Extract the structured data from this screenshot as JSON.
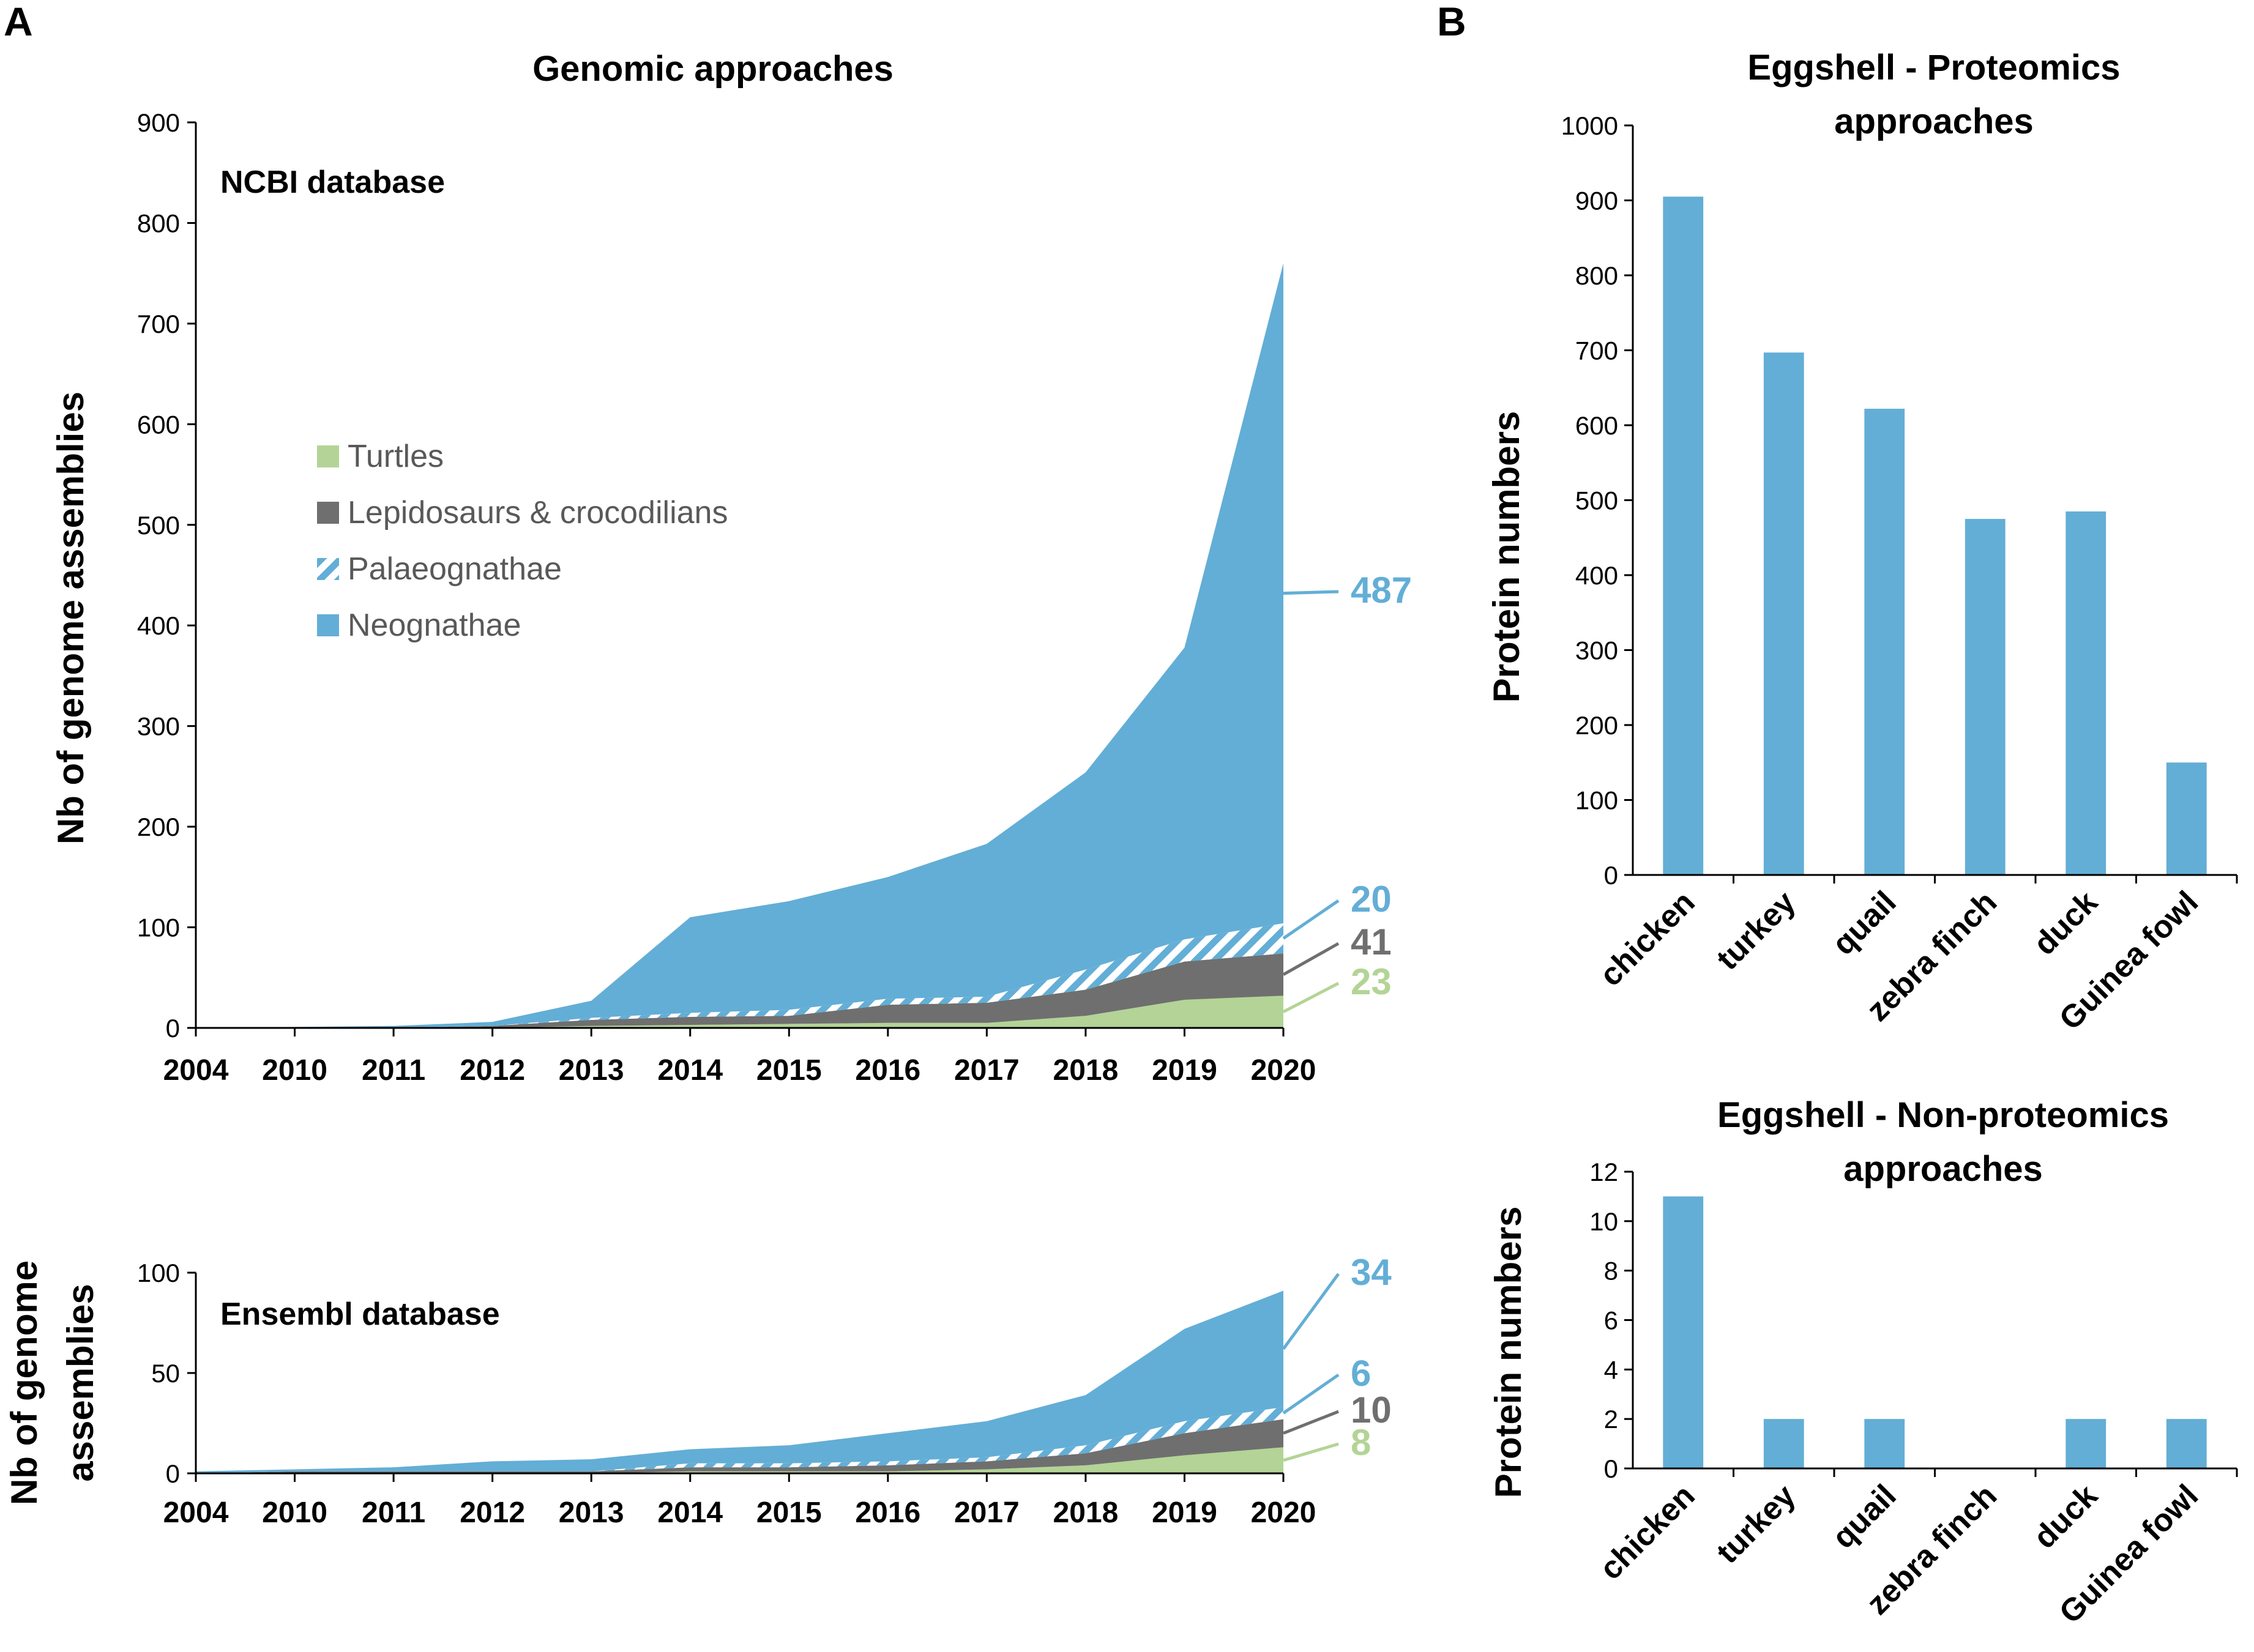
{
  "colors": {
    "neognathae": "#63aed6",
    "palaeognathae": "#63aed6",
    "lepidosaurs": "#6f6f6f",
    "turtles": "#b3d496",
    "bar": "#63aed6"
  },
  "panels": {
    "a_label": "A",
    "b_label": "B"
  },
  "chart_data": [
    {
      "id": "ncbi",
      "type": "area",
      "stacked": true,
      "title": "Genomic approaches",
      "db_label": "NCBI database",
      "ylabel": "Nb of genome assemblies",
      "xlabel": "",
      "ylim": [
        0,
        900
      ],
      "yticks": [
        "0",
        "100",
        "200",
        "300",
        "400",
        "500",
        "600",
        "700",
        "800",
        "900"
      ],
      "categories": [
        "2004",
        "2010",
        "2011",
        "2012",
        "2013",
        "2014",
        "2015",
        "2016",
        "2017",
        "2018",
        "2019",
        "2020"
      ],
      "series": [
        {
          "key": "turtles",
          "name": "Turtles",
          "values": [
            0,
            0,
            0,
            0,
            2,
            3,
            4,
            5,
            5,
            12,
            28,
            32
          ]
        },
        {
          "key": "lepidosaurs",
          "name": "Lepidosaurs & crocodilians",
          "values": [
            0,
            0,
            0,
            2,
            6,
            8,
            8,
            18,
            20,
            26,
            38,
            42
          ]
        },
        {
          "key": "palaeognathae",
          "name": "Palaeognathae",
          "values": [
            0,
            0,
            0,
            0,
            2,
            4,
            6,
            6,
            6,
            20,
            22,
            30
          ]
        },
        {
          "key": "neognathae",
          "name": "Neognathae",
          "values": [
            0,
            1,
            2,
            4,
            17,
            95,
            108,
            121,
            152,
            196,
            290,
            656
          ]
        }
      ],
      "legend_position": "upper-left",
      "annotations": [
        {
          "text": "487",
          "series": "neognathae",
          "color": "#63aed6"
        },
        {
          "text": "20",
          "series": "palaeognathae",
          "color": "#63aed6"
        },
        {
          "text": "41",
          "series": "lepidosaurs",
          "color": "#6f6f6f"
        },
        {
          "text": "23",
          "series": "turtles",
          "color": "#b3d496"
        }
      ]
    },
    {
      "id": "ensembl",
      "type": "area",
      "stacked": true,
      "title": "",
      "db_label": "Ensembl database",
      "ylabel_lines": [
        "Nb of genome",
        "assemblies"
      ],
      "ylim": [
        0,
        100
      ],
      "yticks": [
        "0",
        "50",
        "100"
      ],
      "categories": [
        "2004",
        "2010",
        "2011",
        "2012",
        "2013",
        "2014",
        "2015",
        "2016",
        "2017",
        "2018",
        "2019",
        "2020"
      ],
      "series": [
        {
          "key": "turtles",
          "name": "Turtles",
          "values": [
            0,
            0,
            0,
            0,
            0,
            1,
            1,
            1,
            2,
            4,
            9,
            13
          ]
        },
        {
          "key": "lepidosaurs",
          "name": "Lepidosaurs & crocodilians",
          "values": [
            0,
            1,
            1,
            1,
            1,
            2,
            2,
            3,
            4,
            6,
            11,
            14
          ]
        },
        {
          "key": "palaeognathae",
          "name": "Palaeognathae",
          "values": [
            0,
            0,
            0,
            0,
            0,
            2,
            2,
            2,
            2,
            4,
            6,
            6
          ]
        },
        {
          "key": "neognathae",
          "name": "Neognathae",
          "values": [
            1,
            1,
            2,
            5,
            6,
            7,
            9,
            14,
            18,
            25,
            46,
            58
          ]
        }
      ],
      "annotations": [
        {
          "text": "34",
          "series": "neognathae",
          "color": "#63aed6"
        },
        {
          "text": "6",
          "series": "palaeognathae",
          "color": "#63aed6"
        },
        {
          "text": "10",
          "series": "lepidosaurs",
          "color": "#6f6f6f"
        },
        {
          "text": "8",
          "series": "turtles",
          "color": "#b3d496"
        }
      ]
    },
    {
      "id": "proteomics",
      "type": "bar",
      "title_lines": [
        "Eggshell - Proteomics",
        "approaches"
      ],
      "ylabel": "Protein numbers",
      "ylim": [
        0,
        1000
      ],
      "yticks": [
        "0",
        "100",
        "200",
        "300",
        "400",
        "500",
        "600",
        "700",
        "800",
        "900",
        "1000"
      ],
      "categories": [
        "chicken",
        "turkey",
        "quail",
        "zebra finch",
        "duck",
        "Guinea fowl"
      ],
      "values": [
        905,
        697,
        622,
        475,
        485,
        150
      ]
    },
    {
      "id": "nonproteomics",
      "type": "bar",
      "title_lines": [
        "Eggshell - Non-proteomics",
        "approaches"
      ],
      "ylabel": "Protein numbers",
      "ylim": [
        0,
        12
      ],
      "yticks": [
        "0",
        "2",
        "4",
        "6",
        "8",
        "10",
        "12"
      ],
      "categories": [
        "chicken",
        "turkey",
        "quail",
        "zebra finch",
        "duck",
        "Guinea fowl"
      ],
      "values": [
        11,
        2,
        2,
        0,
        2,
        2
      ]
    }
  ]
}
